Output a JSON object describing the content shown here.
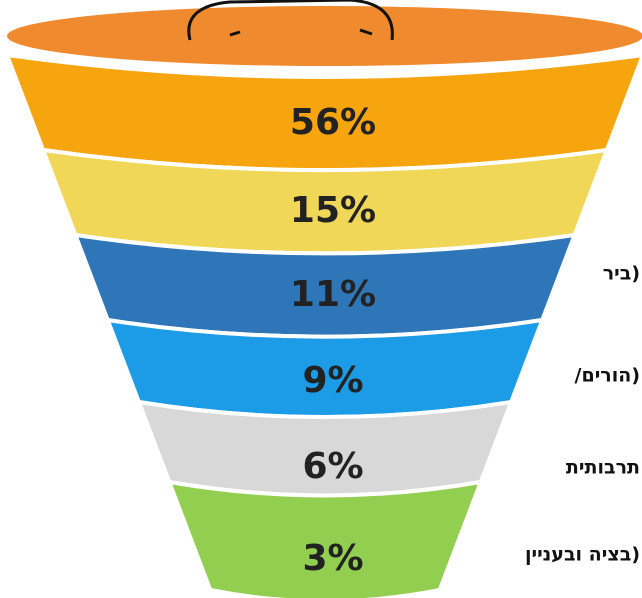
{
  "chart_data": {
    "type": "funnel",
    "categories": [
      null,
      null,
      "ביר)",
      "/הורים)",
      "תרבותית",
      "בציה ובעניין)"
    ],
    "values": [
      56,
      15,
      11,
      9,
      6,
      3
    ],
    "value_labels": [
      "56%",
      "15%",
      "11%",
      "9%",
      "6%",
      "3%"
    ],
    "colors": [
      "#f6a50f",
      "#f1d757",
      "#2f76b8",
      "#1c9be6",
      "#d8d8d8",
      "#92cf50"
    ]
  }
}
